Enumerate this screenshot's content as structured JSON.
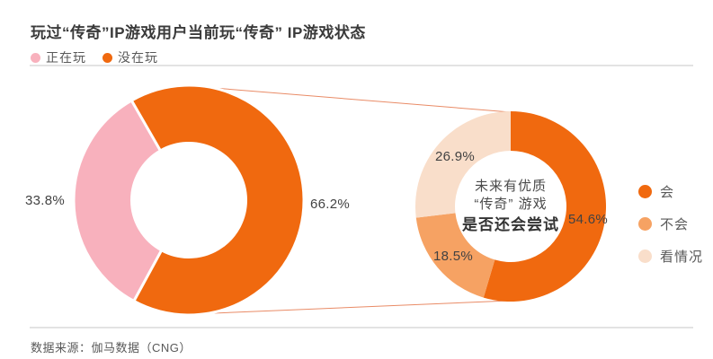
{
  "title": "玩过“传奇”IP游戏用户当前玩“传奇” IP游戏状态",
  "source": "数据来源：伽马数据（CNG）",
  "colors": {
    "playing_pink": "#F8B1BD",
    "not_playing_orange": "#F0690F",
    "will_orange": "#F0690F",
    "wont_orange": "#F6A263",
    "depends_peach": "#F9DECA",
    "connector_line": "#E98B66",
    "divider_gray": "#E3E3E3"
  },
  "top_legend": [
    {
      "label": "正在玩",
      "color": "#F8B1BD"
    },
    {
      "label": "没在玩",
      "color": "#F0690F"
    }
  ],
  "chart_data": [
    {
      "type": "pie",
      "subtype": "donut",
      "name": "current-play-status",
      "title": "玩过“传奇”IP游戏用户当前玩“传奇” IP游戏状态",
      "rotation_deg": 208.5,
      "legend_position": "top-left",
      "slices": [
        {
          "category": "正在玩",
          "value": 33.8,
          "label": "33.8%",
          "color": "#F8B1BD"
        },
        {
          "category": "没在玩",
          "value": 66.2,
          "label": "66.2%",
          "color": "#F0690F"
        }
      ]
    },
    {
      "type": "pie",
      "subtype": "donut",
      "name": "future-try-willingness",
      "center_text": {
        "line1": "未来有优质",
        "line2": "“传奇” 游戏",
        "line3": "是否还会尝试"
      },
      "rotation_deg": 0,
      "legend_position": "right",
      "slices": [
        {
          "category": "会",
          "value": 54.6,
          "label": "54.6%",
          "color": "#F0690F"
        },
        {
          "category": "不会",
          "value": 18.5,
          "label": "18.5%",
          "color": "#F6A263"
        },
        {
          "category": "看情况",
          "value": 26.9,
          "label": "26.9%",
          "color": "#F9DECA"
        }
      ]
    }
  ]
}
